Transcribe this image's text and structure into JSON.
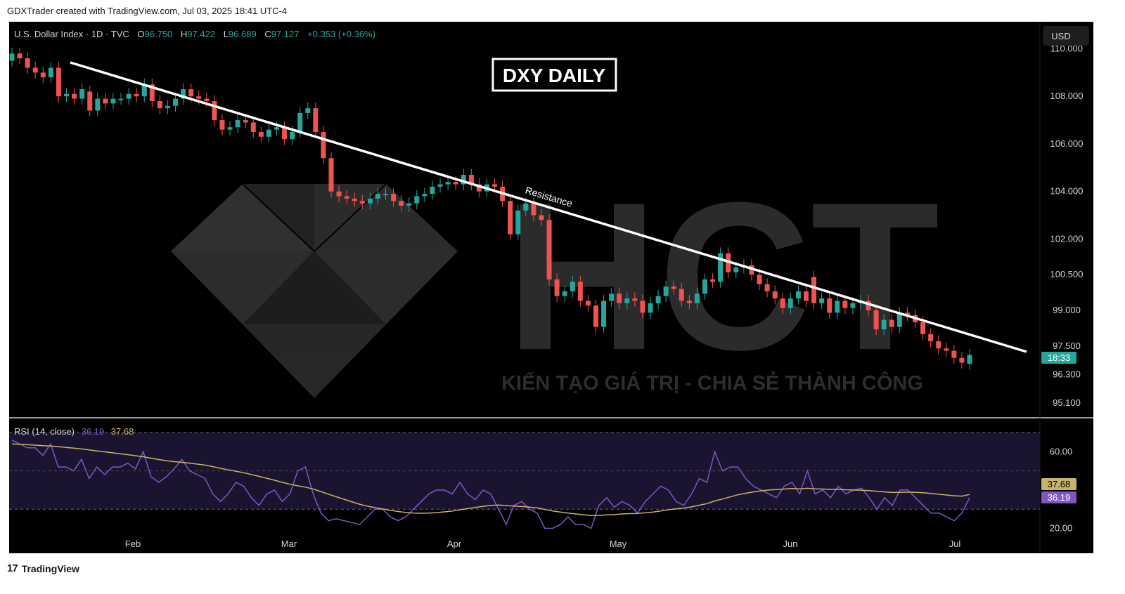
{
  "header": {
    "caption": "GDXTrader created with TradingView.com, Jul 03, 2025 18:41 UTC-4"
  },
  "footer": {
    "brand": "TradingView",
    "logo": "17"
  },
  "legend": {
    "symbol": "U.S. Dollar Index · 1D · TVC",
    "o_label": "O",
    "o_value": "96.750",
    "h_label": "H",
    "h_value": "97.422",
    "l_label": "L",
    "l_value": "96.689",
    "c_label": "C",
    "c_value": "97.127",
    "change": "+0.353 (+0.36%)"
  },
  "currency_button": "USD",
  "title_box": "DXY DAILY",
  "annotation": "Resistance",
  "watermark": {
    "brand": "HCT",
    "slogan": "KIẾN TẠO GIÁ TRỊ - CHIA SẺ THÀNH CÔNG"
  },
  "price_badge": {
    "time": "18:33"
  },
  "rsi_legend": {
    "label": "RSI (14, close)",
    "rsi": "36.19",
    "ma": "37.68"
  },
  "colors": {
    "up": "#26a69a",
    "down": "#ef5350",
    "rsi": "#7e57c2",
    "rsi_ma": "#c9b26b",
    "band": "#1b1430"
  },
  "chart_data": [
    {
      "type": "candlestick",
      "title": "DXY DAILY",
      "y_ticks": [
        "110.000",
        "108.000",
        "106.000",
        "104.000",
        "102.000",
        "100.500",
        "99.000",
        "97.500",
        "96.300",
        "95.100"
      ],
      "x_ticks": [
        "Feb",
        "Mar",
        "Apr",
        "May",
        "Jun",
        "Jul"
      ],
      "ylim": [
        94.6,
        110.9
      ],
      "series": [
        {
          "open": 109.5,
          "close": 109.8
        },
        {
          "open": 109.8,
          "close": 109.6
        },
        {
          "open": 109.6,
          "close": 109.2
        },
        {
          "open": 109.2,
          "close": 109.0
        },
        {
          "open": 109.0,
          "close": 108.8
        },
        {
          "open": 108.8,
          "close": 109.2
        },
        {
          "open": 109.2,
          "close": 108.0
        },
        {
          "open": 108.0,
          "close": 108.1
        },
        {
          "open": 108.1,
          "close": 107.9
        },
        {
          "open": 107.9,
          "close": 108.3
        },
        {
          "open": 108.2,
          "close": 107.4
        },
        {
          "open": 107.4,
          "close": 107.9
        },
        {
          "open": 107.9,
          "close": 107.7
        },
        {
          "open": 107.7,
          "close": 107.9
        },
        {
          "open": 107.9,
          "close": 107.9
        },
        {
          "open": 107.9,
          "close": 108.1
        },
        {
          "open": 108.1,
          "close": 108.0
        },
        {
          "open": 108.0,
          "close": 108.5
        },
        {
          "open": 108.5,
          "close": 107.8
        },
        {
          "open": 107.8,
          "close": 107.5
        },
        {
          "open": 107.5,
          "close": 107.6
        },
        {
          "open": 107.6,
          "close": 107.9
        },
        {
          "open": 107.9,
          "close": 108.3
        },
        {
          "open": 108.3,
          "close": 108.0
        },
        {
          "open": 108.0,
          "close": 107.9
        },
        {
          "open": 107.9,
          "close": 107.8
        },
        {
          "open": 107.8,
          "close": 107.0
        },
        {
          "open": 107.0,
          "close": 106.6
        },
        {
          "open": 106.6,
          "close": 106.7
        },
        {
          "open": 106.7,
          "close": 107.0
        },
        {
          "open": 107.0,
          "close": 106.9
        },
        {
          "open": 106.9,
          "close": 106.5
        },
        {
          "open": 106.5,
          "close": 106.3
        },
        {
          "open": 106.3,
          "close": 106.6
        },
        {
          "open": 106.6,
          "close": 106.7
        },
        {
          "open": 106.7,
          "close": 106.2
        },
        {
          "open": 106.2,
          "close": 106.5
        },
        {
          "open": 106.5,
          "close": 107.3
        },
        {
          "open": 107.3,
          "close": 107.5
        },
        {
          "open": 107.5,
          "close": 106.5
        },
        {
          "open": 106.5,
          "close": 105.4
        },
        {
          "open": 105.4,
          "close": 104.0
        },
        {
          "open": 104.0,
          "close": 103.8
        },
        {
          "open": 103.8,
          "close": 103.7
        },
        {
          "open": 103.7,
          "close": 103.6
        },
        {
          "open": 103.6,
          "close": 103.5
        },
        {
          "open": 103.5,
          "close": 103.7
        },
        {
          "open": 103.7,
          "close": 103.9
        },
        {
          "open": 103.9,
          "close": 103.9
        },
        {
          "open": 103.9,
          "close": 103.6
        },
        {
          "open": 103.6,
          "close": 103.4
        },
        {
          "open": 103.4,
          "close": 103.5
        },
        {
          "open": 103.5,
          "close": 103.8
        },
        {
          "open": 103.8,
          "close": 103.9
        },
        {
          "open": 103.9,
          "close": 104.2
        },
        {
          "open": 104.2,
          "close": 104.3
        },
        {
          "open": 104.3,
          "close": 104.4
        },
        {
          "open": 104.4,
          "close": 104.3
        },
        {
          "open": 104.3,
          "close": 104.7
        },
        {
          "open": 104.7,
          "close": 104.3
        },
        {
          "open": 104.3,
          "close": 104.0
        },
        {
          "open": 104.0,
          "close": 104.3
        },
        {
          "open": 104.3,
          "close": 104.2
        },
        {
          "open": 104.2,
          "close": 103.6
        },
        {
          "open": 103.6,
          "close": 102.2
        },
        {
          "open": 102.2,
          "close": 103.2
        },
        {
          "open": 103.2,
          "close": 103.5
        },
        {
          "open": 103.5,
          "close": 103.0
        },
        {
          "open": 103.0,
          "close": 102.8
        },
        {
          "open": 102.8,
          "close": 100.3
        },
        {
          "open": 100.3,
          "close": 99.6
        },
        {
          "open": 99.6,
          "close": 99.8
        },
        {
          "open": 99.8,
          "close": 100.2
        },
        {
          "open": 100.2,
          "close": 99.4
        },
        {
          "open": 99.4,
          "close": 99.2
        },
        {
          "open": 99.2,
          "close": 98.3
        },
        {
          "open": 98.3,
          "close": 99.4
        },
        {
          "open": 99.4,
          "close": 99.7
        },
        {
          "open": 99.7,
          "close": 99.3
        },
        {
          "open": 99.3,
          "close": 99.5
        },
        {
          "open": 99.5,
          "close": 99.4
        },
        {
          "open": 99.4,
          "close": 98.9
        },
        {
          "open": 98.9,
          "close": 99.3
        },
        {
          "open": 99.3,
          "close": 99.6
        },
        {
          "open": 99.6,
          "close": 100.0
        },
        {
          "open": 100.0,
          "close": 99.9
        },
        {
          "open": 99.9,
          "close": 99.4
        },
        {
          "open": 99.4,
          "close": 99.3
        },
        {
          "open": 99.3,
          "close": 99.7
        },
        {
          "open": 99.7,
          "close": 100.3
        },
        {
          "open": 100.3,
          "close": 100.2
        },
        {
          "open": 100.2,
          "close": 101.4
        },
        {
          "open": 101.4,
          "close": 100.6
        },
        {
          "open": 100.6,
          "close": 100.8
        },
        {
          "open": 100.8,
          "close": 100.9
        },
        {
          "open": 100.9,
          "close": 100.5
        },
        {
          "open": 100.5,
          "close": 100.1
        },
        {
          "open": 100.1,
          "close": 99.8
        },
        {
          "open": 99.8,
          "close": 99.5
        },
        {
          "open": 99.5,
          "close": 99.1
        },
        {
          "open": 99.1,
          "close": 99.5
        },
        {
          "open": 99.5,
          "close": 99.8
        },
        {
          "open": 99.8,
          "close": 99.4
        },
        {
          "open": 100.4,
          "close": 99.3
        },
        {
          "open": 99.3,
          "close": 99.5
        },
        {
          "open": 99.5,
          "close": 98.9
        },
        {
          "open": 98.9,
          "close": 99.4
        },
        {
          "open": 99.4,
          "close": 99.1
        },
        {
          "open": 99.1,
          "close": 99.3
        },
        {
          "open": 99.3,
          "close": 99.4
        },
        {
          "open": 99.4,
          "close": 99.0
        },
        {
          "open": 99.0,
          "close": 98.2
        },
        {
          "open": 98.2,
          "close": 98.6
        },
        {
          "open": 98.6,
          "close": 98.3
        },
        {
          "open": 98.3,
          "close": 98.9
        },
        {
          "open": 98.9,
          "close": 98.8
        },
        {
          "open": 98.8,
          "close": 98.5
        },
        {
          "open": 98.5,
          "close": 98.0
        },
        {
          "open": 98.0,
          "close": 97.7
        },
        {
          "open": 97.7,
          "close": 97.4
        },
        {
          "open": 97.4,
          "close": 97.3
        },
        {
          "open": 97.3,
          "close": 97.0
        },
        {
          "open": 97.0,
          "close": 96.8
        },
        {
          "open": 96.75,
          "close": 97.127
        }
      ]
    },
    {
      "type": "line",
      "title": "RSI (14, close)",
      "y_ticks": [
        "60.00",
        "20.00"
      ],
      "ylim": [
        18,
        74
      ],
      "band": [
        30,
        70
      ],
      "series": [
        {
          "name": "RSI",
          "values": [
            66,
            64,
            62,
            62,
            58,
            64,
            52,
            52,
            50,
            56,
            46,
            52,
            48,
            52,
            52,
            54,
            51,
            60,
            47,
            44,
            47,
            51,
            56,
            50,
            48,
            46,
            38,
            34,
            38,
            44,
            42,
            36,
            32,
            38,
            40,
            34,
            38,
            50,
            52,
            38,
            28,
            24,
            25,
            24,
            23,
            22,
            26,
            30,
            30,
            26,
            24,
            26,
            30,
            34,
            38,
            40,
            40,
            38,
            44,
            38,
            35,
            40,
            38,
            30,
            22,
            32,
            34,
            30,
            28,
            20,
            20,
            22,
            26,
            22,
            22,
            20,
            32,
            36,
            31,
            34,
            32,
            28,
            34,
            38,
            42,
            40,
            34,
            32,
            38,
            46,
            44,
            60,
            50,
            52,
            52,
            46,
            42,
            40,
            38,
            36,
            42,
            44,
            38,
            50,
            38,
            40,
            36,
            42,
            38,
            40,
            41,
            36,
            30,
            36,
            32,
            40,
            40,
            36,
            32,
            28,
            28,
            26,
            24,
            28,
            36
          ]
        },
        {
          "name": "RSI-based MA",
          "values": [
            64,
            63.8,
            63.6,
            63.4,
            63.1,
            62.9,
            62.6,
            62.2,
            61.8,
            61.4,
            60.9,
            60.4,
            59.9,
            59.4,
            58.9,
            58.4,
            57.9,
            57.3,
            56.6,
            55.9,
            55.3,
            54.8,
            54.4,
            54,
            53.5,
            53,
            52.2,
            51.3,
            50.5,
            49.8,
            49,
            48.1,
            47.1,
            46.1,
            45.1,
            44,
            43,
            42.2,
            41.5,
            40.5,
            39.2,
            37.8,
            36.5,
            35.2,
            33.9,
            32.6,
            31.6,
            30.8,
            30.1,
            29.4,
            28.8,
            28.3,
            28,
            27.9,
            28,
            28.2,
            28.6,
            29,
            29.7,
            30.3,
            30.9,
            31.5,
            32,
            32.2,
            31.9,
            31.6,
            31.4,
            31.1,
            30.7,
            29.9,
            29.1,
            28.5,
            28,
            27.5,
            27.1,
            26.7,
            26.8,
            27,
            27.2,
            27.5,
            27.7,
            27.8,
            28.1,
            28.5,
            29.1,
            29.7,
            30.2,
            30.6,
            31.2,
            32.1,
            32.9,
            34.3,
            35.3,
            36.4,
            37.5,
            38.3,
            39,
            39.6,
            40,
            40.2,
            40.5,
            40.8,
            40.6,
            40.9,
            40.6,
            40.5,
            40.3,
            40.4,
            40.1,
            40,
            39.9,
            39.7,
            39.3,
            39,
            38.7,
            38.8,
            38.9,
            38.8,
            38.6,
            38.2,
            37.8,
            37.4,
            37,
            36.8,
            37.68
          ]
        }
      ]
    }
  ]
}
